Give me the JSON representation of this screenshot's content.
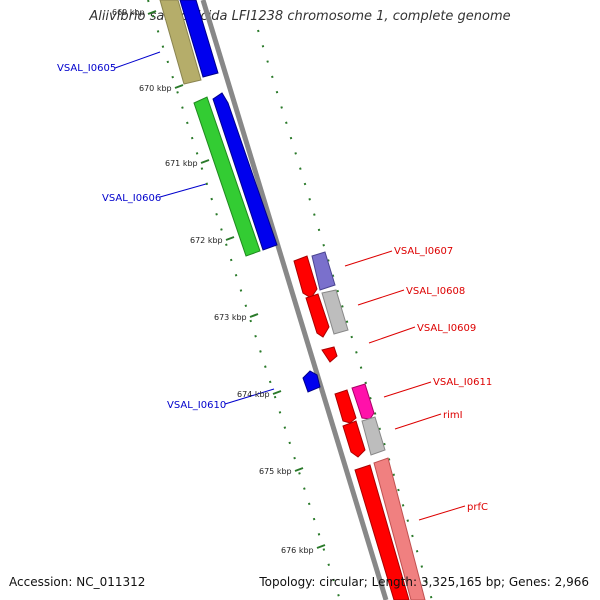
{
  "title": "Aliivibrio salmonicida LFI1238 chromosome 1, complete genome",
  "footer": {
    "accession_label": "Accession:",
    "accession": "NC_011312",
    "topology_label": "Topology:",
    "topology": "circular",
    "length_label": "Length:",
    "length": "3,325,165 bp",
    "genes_label": "Genes:",
    "genes": "2,966"
  },
  "ticks": [
    {
      "label": "669 kbp"
    },
    {
      "label": "670 kbp"
    },
    {
      "label": "671 kbp"
    },
    {
      "label": "672 kbp"
    },
    {
      "label": "673 kbp"
    },
    {
      "label": "674 kbp"
    },
    {
      "label": "675 kbp"
    },
    {
      "label": "676 kbp"
    }
  ],
  "gene_labels": [
    {
      "name": "VSAL_I0605",
      "color": "#0000cc"
    },
    {
      "name": "VSAL_I0606",
      "color": "#0000cc"
    },
    {
      "name": "VSAL_I0607",
      "color": "#dd0000"
    },
    {
      "name": "VSAL_I0608",
      "color": "#dd0000"
    },
    {
      "name": "VSAL_I0609",
      "color": "#dd0000"
    },
    {
      "name": "VSAL_I0610",
      "color": "#0000cc"
    },
    {
      "name": "VSAL_I0611",
      "color": "#dd0000"
    },
    {
      "name": "rimI",
      "color": "#dd0000"
    },
    {
      "name": "prfC",
      "color": "#dd0000"
    }
  ],
  "colors": {
    "backbone": "#888888",
    "gc_dots": "#2a7a2a",
    "forward_cds": "#ff0000",
    "reverse_cds": "#0000ee",
    "tan_feature": "#b5ad6a",
    "green_feature": "#33cc33",
    "purple_feature": "#7a70cc",
    "gray_feature": "#bdbdbd",
    "magenta_feature": "#ff11aa",
    "pink_feature": "#f08080"
  }
}
